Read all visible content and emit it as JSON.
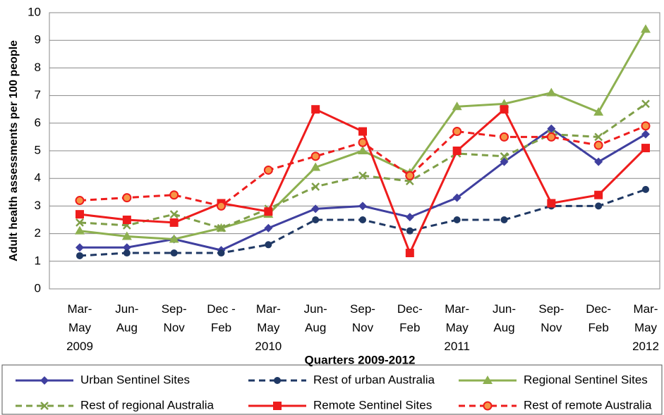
{
  "chart_data": {
    "type": "line",
    "x_label": "Quarters 2009-2012",
    "y_label": "Adult health assessments per 100 people",
    "categories": [
      "Mar-\nMay\n2009",
      "Jun-\nAug",
      "Sep-\nNov",
      "Dec -\nFeb",
      "Mar-\nMay\n2010",
      "Jun-\nAug",
      "Sep-\nNov",
      "Dec-\nFeb",
      "Mar-\nMay\n2011",
      "Jun-\nAug",
      "Sep-\nNov",
      "Dec-\nFeb",
      "Mar-\nMay\n2012"
    ],
    "ylim": [
      0,
      10
    ],
    "yticks": [
      0,
      1,
      2,
      3,
      4,
      5,
      6,
      7,
      8,
      9,
      10
    ],
    "grid": true,
    "legend": "bottom",
    "series": [
      {
        "name": "Urban Sentinel Sites",
        "color": "#3f3f9f",
        "dashed": false,
        "marker": "diamond",
        "values": [
          1.5,
          1.5,
          1.8,
          1.4,
          2.2,
          2.9,
          3.0,
          2.6,
          3.3,
          4.6,
          5.8,
          4.6,
          5.6
        ]
      },
      {
        "name": "Rest of urban Australia",
        "color": "#1f3864",
        "dashed": true,
        "marker": "circle",
        "values": [
          1.2,
          1.3,
          1.3,
          1.3,
          1.6,
          2.5,
          2.5,
          2.1,
          2.5,
          2.5,
          3.0,
          3.0,
          3.6
        ]
      },
      {
        "name": "Regional Sentinel Sites",
        "color": "#8db050",
        "dashed": false,
        "marker": "triangle",
        "values": [
          2.1,
          1.9,
          1.8,
          2.2,
          2.7,
          4.4,
          5.0,
          4.2,
          6.6,
          6.7,
          7.1,
          6.4,
          9.4
        ]
      },
      {
        "name": "Rest of regional Australia",
        "color": "#7f9f48",
        "dashed": true,
        "marker": "x",
        "values": [
          2.4,
          2.3,
          2.7,
          2.2,
          2.9,
          3.7,
          4.1,
          3.9,
          4.9,
          4.8,
          5.6,
          5.5,
          6.7
        ]
      },
      {
        "name": "Remote Sentinel Sites",
        "color": "#ee1c1c",
        "dashed": false,
        "marker": "square",
        "values": [
          2.7,
          2.5,
          2.4,
          3.1,
          2.8,
          6.5,
          5.7,
          1.3,
          5.0,
          6.5,
          3.1,
          3.4,
          5.1
        ]
      },
      {
        "name": "Rest of remote Australia",
        "color": "#ee1c1c",
        "dashed": true,
        "marker": "dot",
        "values": [
          3.2,
          3.3,
          3.4,
          3.0,
          4.3,
          4.8,
          5.3,
          4.1,
          5.7,
          5.5,
          5.5,
          5.2,
          5.9
        ]
      }
    ]
  }
}
